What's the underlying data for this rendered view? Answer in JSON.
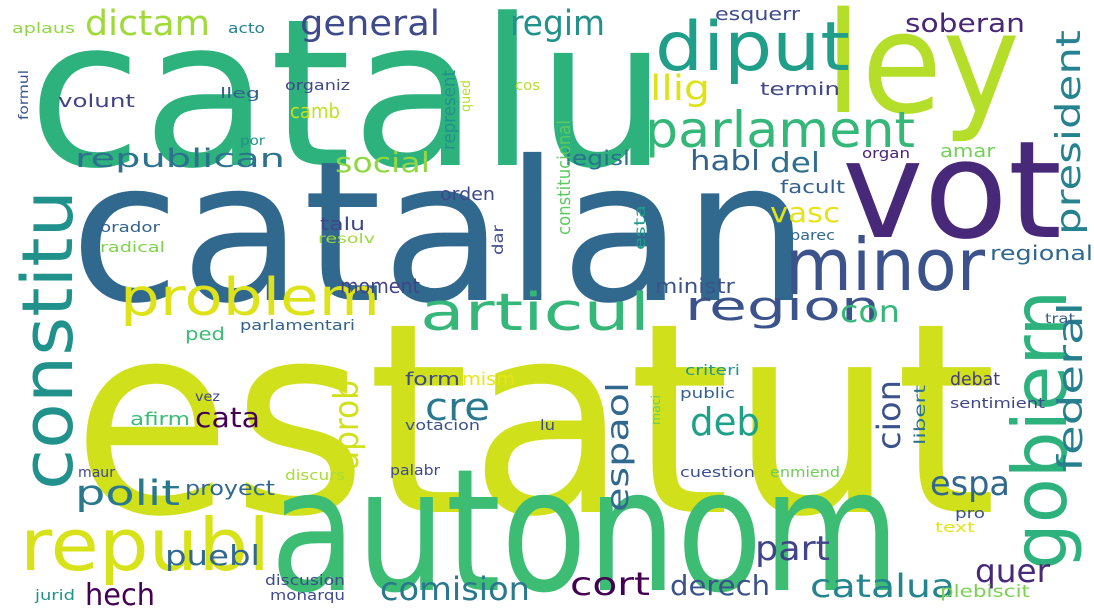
{
  "words": [
    "estatut",
    "catalu",
    "catalan",
    "autonom",
    "ley",
    "vot",
    "minor",
    "diput",
    "parlament",
    "constitu",
    "gobiern",
    "problem",
    "articul",
    "republ",
    "region",
    "president",
    "federal",
    "general",
    "regim",
    "dictam",
    "llig",
    "soberan",
    "republican",
    "social",
    "habl",
    "del",
    "vasc",
    "polit",
    "aprob",
    "cre",
    "cata",
    "espaol",
    "deb",
    "cion",
    "espa",
    "part",
    "quer",
    "catalua",
    "cort",
    "derech",
    "comision",
    "puebl",
    "hech",
    "proyect",
    "moment",
    "ministr",
    "con",
    "regional",
    "amar",
    "facult",
    "legisl",
    "orden",
    "constitucional",
    "represent",
    "talu",
    "dar",
    "esta",
    "parec",
    "organ",
    "termin",
    "esquerr",
    "cos",
    "qued",
    "camb",
    "volunt",
    "organiz",
    "lleg",
    "acto",
    "aplaus",
    "formul",
    "por",
    "orador",
    "radical",
    "resolv",
    "parlamentari",
    "ped",
    "form",
    "mism",
    "afirm",
    "debat",
    "libert",
    "criteri",
    "public",
    "maci",
    "vez",
    "votacion",
    "lu",
    "sentimient",
    "trat",
    "maur",
    "discurs",
    "palabr",
    "cuestion",
    "enmiend",
    "pro",
    "text",
    "plebiscit",
    "discusion",
    "monarqu",
    "jurid"
  ]
}
